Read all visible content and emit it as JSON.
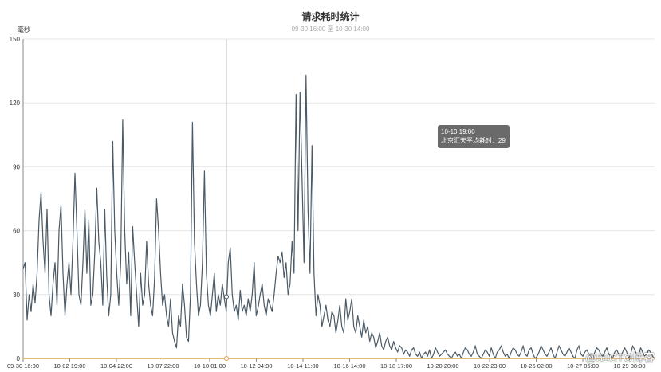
{
  "chart_data": {
    "type": "line",
    "title": "请求耗时统计",
    "subtitle": "09-30 16:00 至 10-30 14:00",
    "ylabel": "毫秒",
    "ylim": [
      0,
      150
    ],
    "yticks": [
      0,
      30,
      60,
      90,
      120,
      150
    ],
    "x_tick_labels": [
      "09-30 16:00",
      "10-02 19:00",
      "10-04 22:00",
      "10-07 22:00",
      "10-10 01:00",
      "10-12 04:00",
      "10-14 11:00",
      "10-16 14:00",
      "10-18 17:00",
      "10-20 20:00",
      "10-22 23:00",
      "10-25 02:00",
      "10-27 05:00",
      "10-29 08:00"
    ],
    "grid": true,
    "colors": {
      "line": "#4a5a66",
      "baseline": "#d9a340",
      "grid": "#e6e6e6",
      "axis": "#888888"
    },
    "series": [
      {
        "values": [
          42,
          45,
          18,
          30,
          22,
          35,
          26,
          40,
          65,
          78,
          55,
          40,
          70,
          30,
          20,
          35,
          45,
          25,
          60,
          72,
          40,
          20,
          35,
          45,
          30,
          55,
          87,
          60,
          30,
          25,
          45,
          70,
          40,
          65,
          25,
          30,
          50,
          80,
          55,
          45,
          25,
          70,
          38,
          20,
          30,
          102,
          60,
          40,
          25,
          45,
          112,
          60,
          35,
          50,
          20,
          62,
          45,
          30,
          15,
          40,
          25,
          30,
          55,
          35,
          25,
          20,
          38,
          75,
          60,
          40,
          25,
          30,
          20,
          15,
          28,
          12,
          8,
          5,
          20,
          15,
          35,
          25,
          10,
          8,
          30,
          111,
          55,
          35,
          20,
          25,
          45,
          88,
          40,
          25,
          20,
          30,
          40,
          22,
          30,
          25,
          35,
          28,
          22,
          45,
          52,
          30,
          22,
          25,
          18,
          32,
          22,
          25,
          20,
          28,
          22,
          30,
          45,
          20,
          24,
          30,
          35,
          25,
          20,
          28,
          25,
          22,
          30,
          40,
          48,
          45,
          50,
          38,
          45,
          30,
          35,
          55,
          40,
          124,
          60,
          125,
          85,
          45,
          133,
          70,
          40,
          100,
          40,
          20,
          30,
          25,
          15,
          20,
          25,
          18,
          15,
          22,
          20,
          12,
          18,
          25,
          15,
          12,
          28,
          18,
          22,
          28,
          15,
          12,
          20,
          15,
          10,
          18,
          12,
          15,
          8,
          12,
          10,
          5,
          8,
          12,
          6,
          4,
          8,
          10,
          6,
          4,
          8,
          5,
          3,
          6,
          5,
          2,
          4,
          3,
          1,
          4,
          5,
          2,
          1,
          3,
          0,
          2,
          3,
          1,
          4,
          0,
          2,
          5,
          3,
          1,
          2,
          3,
          4,
          2,
          1,
          0,
          2,
          3,
          1,
          2,
          0,
          3,
          5,
          4,
          2,
          1,
          3,
          6,
          2,
          1,
          0,
          2,
          4,
          3,
          1,
          5,
          2,
          0,
          3,
          4,
          6,
          3,
          1,
          2,
          0,
          3,
          5,
          4,
          2,
          1,
          3,
          6,
          2,
          1,
          4,
          5,
          2,
          0,
          1,
          3,
          6,
          4,
          2,
          1,
          3,
          5,
          2,
          0,
          3,
          6,
          4,
          2,
          1,
          3,
          5,
          3,
          1,
          0,
          4,
          6,
          2,
          1,
          3,
          4,
          2,
          1,
          0,
          3,
          5,
          4,
          2,
          1,
          3,
          5,
          2,
          1,
          0,
          3,
          4,
          2,
          1,
          3,
          5,
          3,
          0,
          2,
          6,
          4,
          2,
          1,
          5,
          3,
          1,
          2,
          4,
          3,
          1,
          0
        ]
      }
    ]
  },
  "tooltip": {
    "time": "10-10 19:00",
    "label": "北京汇天平均耗时：29"
  },
  "watermark": "@51CTO博客"
}
